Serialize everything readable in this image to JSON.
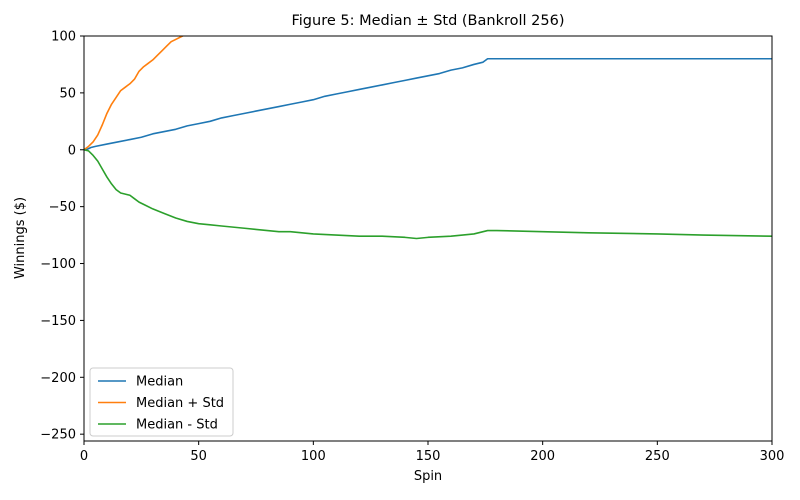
{
  "chart_data": {
    "type": "line",
    "title": "Figure 5: Median ± Std (Bankroll 256)",
    "xlabel": "Spin",
    "ylabel": "Winnings ($)",
    "xlim": [
      0,
      300
    ],
    "ylim": [
      -256,
      100
    ],
    "xticks": [
      0,
      50,
      100,
      150,
      200,
      250,
      300
    ],
    "yticks": [
      -250,
      -200,
      -150,
      -100,
      -50,
      0,
      50,
      100
    ],
    "xtick_labels": [
      "0",
      "50",
      "100",
      "150",
      "200",
      "250",
      "300"
    ],
    "ytick_labels": [
      "−250",
      "−200",
      "−150",
      "−100",
      "−50",
      "0",
      "50",
      "100"
    ],
    "grid": false,
    "legend_position": "lower-left",
    "series": [
      {
        "name": "Median",
        "color": "#1f77b4",
        "x": [
          0,
          1,
          2,
          3,
          5,
          10,
          15,
          20,
          25,
          30,
          35,
          40,
          45,
          50,
          55,
          60,
          65,
          70,
          75,
          80,
          85,
          90,
          95,
          100,
          105,
          110,
          115,
          120,
          125,
          130,
          135,
          140,
          145,
          150,
          155,
          160,
          165,
          170,
          174,
          176,
          177,
          180,
          200,
          250,
          300
        ],
        "y": [
          0,
          0,
          1,
          2,
          3,
          5,
          7,
          9,
          11,
          14,
          16,
          18,
          21,
          23,
          25,
          28,
          30,
          32,
          34,
          36,
          38,
          40,
          42,
          44,
          47,
          49,
          51,
          53,
          55,
          57,
          59,
          61,
          63,
          65,
          67,
          70,
          72,
          75,
          77,
          80,
          80,
          80,
          80,
          80,
          80
        ]
      },
      {
        "name": "Median + Std",
        "color": "#ff7f0e",
        "x": [
          0,
          2,
          4,
          6,
          8,
          10,
          12,
          14,
          16,
          18,
          20,
          22,
          24,
          26,
          28,
          30,
          32,
          34,
          36,
          38,
          40,
          42,
          43
        ],
        "y": [
          0,
          3,
          7,
          13,
          22,
          32,
          40,
          46,
          52,
          55,
          58,
          62,
          69,
          73,
          76,
          79,
          83,
          87,
          91,
          95,
          97,
          99,
          100
        ]
      },
      {
        "name": "Median - Std",
        "color": "#2ca02c",
        "x": [
          0,
          2,
          4,
          6,
          8,
          10,
          12,
          14,
          16,
          18,
          20,
          22,
          24,
          26,
          30,
          35,
          40,
          45,
          50,
          55,
          60,
          65,
          70,
          75,
          80,
          85,
          90,
          95,
          100,
          110,
          120,
          130,
          140,
          145,
          150,
          160,
          170,
          174,
          176,
          180,
          200,
          220,
          250,
          270,
          300
        ],
        "y": [
          0,
          -1,
          -5,
          -10,
          -17,
          -24,
          -30,
          -35,
          -38,
          -39,
          -40,
          -43,
          -46,
          -48,
          -52,
          -56,
          -60,
          -63,
          -65,
          -66,
          -67,
          -68,
          -69,
          -70,
          -71,
          -72,
          -72,
          -73,
          -74,
          -75,
          -76,
          -76,
          -77,
          -78,
          -77,
          -76,
          -74,
          -72,
          -71,
          -71,
          -72,
          -73,
          -74,
          -75,
          -76
        ]
      }
    ]
  }
}
